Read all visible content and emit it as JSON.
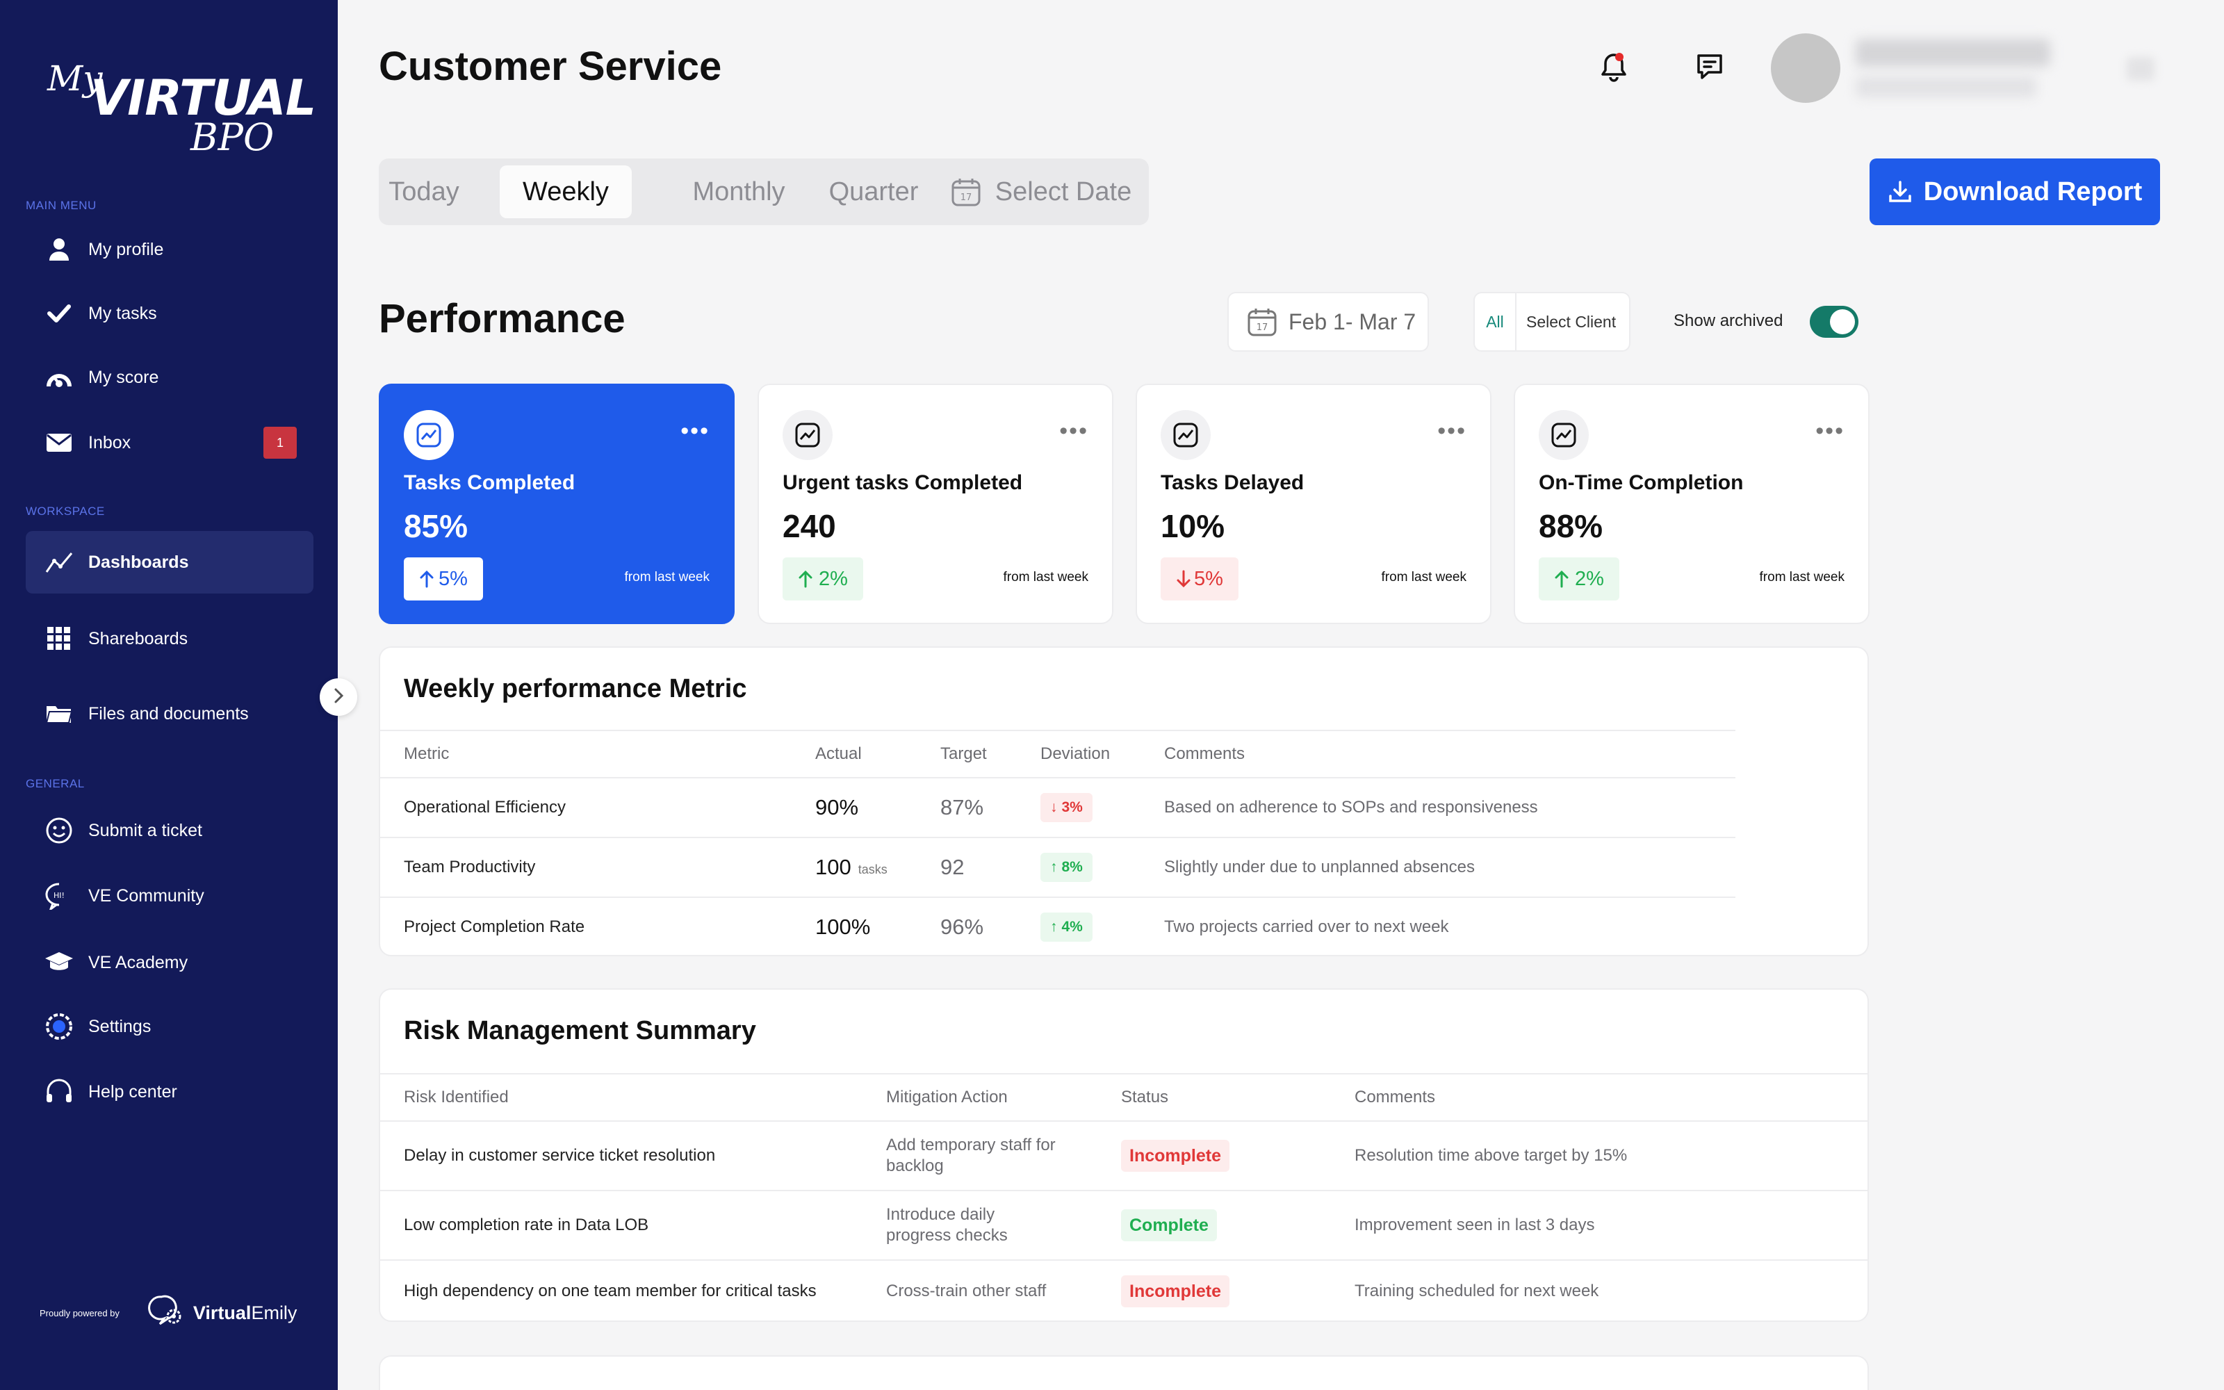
{
  "app": {
    "logo": {
      "my": "My",
      "virtual": "VIRTUAL",
      "bpo": "BPO"
    }
  },
  "sidebar": {
    "sections": {
      "main": "MAIN MENU",
      "workspace": "WORKSPACE",
      "general": "GENERAL"
    },
    "items": [
      {
        "label": "My profile",
        "icon": "user-icon"
      },
      {
        "label": "My tasks",
        "icon": "check-icon"
      },
      {
        "label": "My score",
        "icon": "gauge-icon"
      },
      {
        "label": "Inbox",
        "icon": "mail-icon",
        "badge": "1"
      },
      {
        "label": "Dashboards",
        "icon": "chart-line-icon",
        "active": true
      },
      {
        "label": "Shareboards",
        "icon": "grid-icon"
      },
      {
        "label": "Files and documents",
        "icon": "folder-icon"
      },
      {
        "label": "Submit a ticket",
        "icon": "smile-icon"
      },
      {
        "label": "VE Community",
        "icon": "chat-bubble-icon"
      },
      {
        "label": "VE Academy",
        "icon": "graduation-cap-icon"
      },
      {
        "label": "Settings",
        "icon": "settings-icon"
      },
      {
        "label": "Help center",
        "icon": "headset-icon"
      }
    ],
    "powered_by": "Proudly powered by",
    "powered_brand_bold": "Virtual",
    "powered_brand_rest": "Emily"
  },
  "header": {
    "title": "Customer Service"
  },
  "tabs": [
    {
      "label": "Today"
    },
    {
      "label": "Weekly",
      "active": true
    },
    {
      "label": "Monthly"
    },
    {
      "label": "Quarter"
    },
    {
      "label": "Select Date"
    }
  ],
  "download_label": "Download Report",
  "performance": {
    "title": "Performance",
    "date_range": "Feb 1- Mar 7",
    "client_all": "All",
    "client_select": "Select Client",
    "show_archived": "Show archived",
    "show_archived_on": true
  },
  "cards": [
    {
      "label": "Tasks Completed",
      "value": "85%",
      "change": "5%",
      "direction": "up",
      "from": "from last week"
    },
    {
      "label": "Urgent tasks Completed",
      "value": "240",
      "change": "2%",
      "direction": "up",
      "from": "from last week"
    },
    {
      "label": "Tasks Delayed",
      "value": "10%",
      "change": "5%",
      "direction": "down",
      "from": "from last week"
    },
    {
      "label": "On-Time Completion",
      "value": "88%",
      "change": "2%",
      "direction": "up",
      "from": "from last week"
    }
  ],
  "weekly_metric": {
    "title": "Weekly performance Metric",
    "headers": [
      "Metric",
      "Actual",
      "Target",
      "Deviation",
      "Comments"
    ],
    "rows": [
      {
        "metric": "Operational Efficiency",
        "actual": "90%",
        "unit": "",
        "target": "87%",
        "deviation": "3%",
        "dir": "down",
        "comment": "Based on adherence to SOPs and responsiveness"
      },
      {
        "metric": "Team Productivity",
        "actual": "100",
        "unit": "tasks",
        "target": "92",
        "deviation": "8%",
        "dir": "up",
        "comment": "Slightly under due to unplanned absences"
      },
      {
        "metric": "Project Completion Rate",
        "actual": "100%",
        "unit": "",
        "target": "96%",
        "deviation": "4%",
        "dir": "up",
        "comment": "Two projects carried over to next week"
      }
    ]
  },
  "risk_summary": {
    "title": "Risk Management Summary",
    "headers": [
      "Risk Identified",
      "Mitigation Action",
      "Status",
      "Comments"
    ],
    "rows": [
      {
        "risk": "Delay in customer service ticket resolution",
        "action_l1": "Add temporary staff for",
        "action_l2": "backlog",
        "status": "Incomplete",
        "comment": "Resolution time above target by 15%"
      },
      {
        "risk": "Low completion rate in Data LOB",
        "action_l1": "Introduce daily",
        "action_l2": "progress checks",
        "status": "Complete",
        "comment": "Improvement seen in last 3 days"
      },
      {
        "risk": "High dependency on one team member for critical tasks",
        "action_l1": "Cross-train other staff",
        "action_l2": "",
        "status": "Incomplete",
        "comment": "Training scheduled for next week"
      }
    ]
  },
  "colors": {
    "sidebar": "#131a59",
    "accent": "#1f5bea",
    "up": "#1fae50",
    "down": "#e03838",
    "toggle": "#147a68"
  }
}
